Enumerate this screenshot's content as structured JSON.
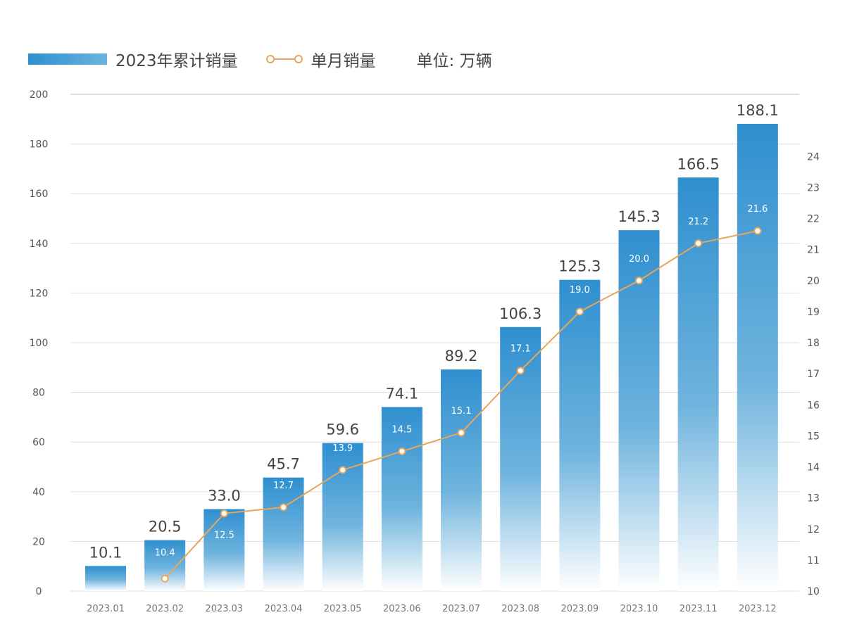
{
  "chart_data": {
    "type": "bar",
    "categories": [
      "2023.01",
      "2023.02",
      "2023.03",
      "2023.04",
      "2023.05",
      "2023.06",
      "2023.07",
      "2023.08",
      "2023.09",
      "2023.10",
      "2023.11",
      "2023.12"
    ],
    "series": [
      {
        "name": "2023年累计销量",
        "type": "bar",
        "axis": "left",
        "values": [
          10.1,
          20.5,
          33.0,
          45.7,
          59.6,
          74.1,
          89.2,
          106.3,
          125.3,
          145.3,
          166.5,
          188.1
        ],
        "labels": [
          "10.1",
          "20.5",
          "33.0",
          "45.7",
          "59.6",
          "74.1",
          "89.2",
          "106.3",
          "125.3",
          "145.3",
          "166.5",
          "188.1"
        ]
      },
      {
        "name": "单月销量",
        "type": "line",
        "axis": "right",
        "values": [
          null,
          10.4,
          12.5,
          12.7,
          13.9,
          14.5,
          15.1,
          17.1,
          19.0,
          20.0,
          21.2,
          21.6
        ],
        "labels": [
          "",
          "10.4",
          "12.5",
          "12.7",
          "13.9",
          "14.5",
          "15.1",
          "17.1",
          "19.0",
          "20.0",
          "21.2",
          "21.6"
        ]
      }
    ],
    "unit": "单位: 万辆",
    "y_left": {
      "ylim": [
        0,
        200
      ],
      "ticks": [
        "0",
        "20",
        "40",
        "60",
        "80",
        "100",
        "120",
        "140",
        "160",
        "180",
        "200"
      ]
    },
    "y_right": {
      "ylim": [
        10,
        26
      ],
      "ticks": [
        "10",
        "11",
        "12",
        "13",
        "14",
        "15",
        "16",
        "17",
        "18",
        "19",
        "20",
        "21",
        "22",
        "23",
        "24"
      ]
    },
    "grid": true,
    "legend_position": "top-left",
    "colors": {
      "bar_top": "#2f8fcf",
      "bar_bottom": "#ffffff",
      "line": "#e8a65c",
      "marker_fill": "#ffffff",
      "grid": "#dddddd",
      "text": "#444444",
      "axis_text": "#555555"
    }
  }
}
